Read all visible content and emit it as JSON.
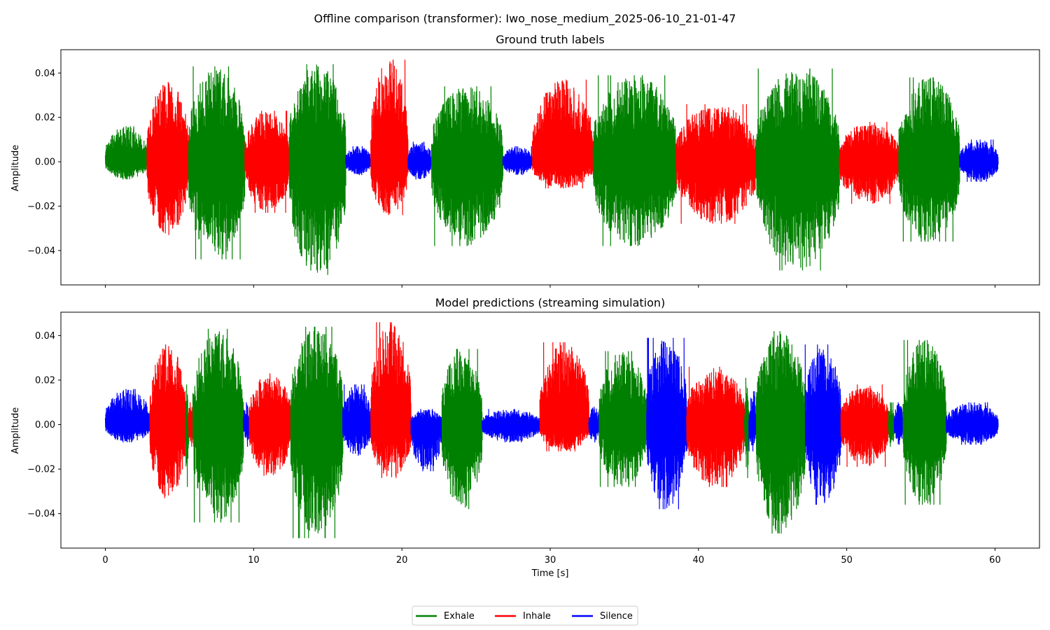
{
  "title": "Offline comparison (transformer): Iwo_nose_medium_2025-06-10_21-01-47",
  "colors": {
    "Exhale": "#008000",
    "Inhale": "#ff0000",
    "Silence": "#0000ff"
  },
  "chart_data": [
    {
      "type": "line",
      "title": "Ground truth labels",
      "xlabel": "",
      "ylabel": "Amplitude",
      "xlim": [
        -3,
        63
      ],
      "ylim": [
        -0.0555,
        0.0505
      ],
      "xticks": [
        0,
        10,
        20,
        30,
        40,
        50,
        60
      ],
      "show_xtick_labels": false,
      "yticks": [
        -0.04,
        -0.02,
        0.0,
        0.02,
        0.04
      ],
      "ytick_labels": [
        "−0.04",
        "−0.02",
        "0.00",
        "0.02",
        "0.04"
      ],
      "segments": [
        {
          "label": "Exhale",
          "start": 0.0,
          "end": 2.8,
          "peak_pos": 0.016,
          "peak_neg": -0.008
        },
        {
          "label": "Inhale",
          "start": 2.8,
          "end": 5.6,
          "peak_pos": 0.036,
          "peak_neg": -0.033
        },
        {
          "label": "Exhale",
          "start": 5.6,
          "end": 9.4,
          "peak_pos": 0.043,
          "peak_neg": -0.044
        },
        {
          "label": "Inhale",
          "start": 9.4,
          "end": 12.4,
          "peak_pos": 0.023,
          "peak_neg": -0.023
        },
        {
          "label": "Exhale",
          "start": 12.4,
          "end": 16.2,
          "peak_pos": 0.044,
          "peak_neg": -0.051
        },
        {
          "label": "Silence",
          "start": 16.2,
          "end": 17.9,
          "peak_pos": 0.007,
          "peak_neg": -0.006
        },
        {
          "label": "Inhale",
          "start": 17.9,
          "end": 20.4,
          "peak_pos": 0.046,
          "peak_neg": -0.024
        },
        {
          "label": "Silence",
          "start": 20.4,
          "end": 22.0,
          "peak_pos": 0.009,
          "peak_neg": -0.008
        },
        {
          "label": "Exhale",
          "start": 22.0,
          "end": 26.8,
          "peak_pos": 0.034,
          "peak_neg": -0.038
        },
        {
          "label": "Silence",
          "start": 26.8,
          "end": 28.8,
          "peak_pos": 0.007,
          "peak_neg": -0.006
        },
        {
          "label": "Inhale",
          "start": 28.8,
          "end": 32.9,
          "peak_pos": 0.037,
          "peak_neg": -0.012
        },
        {
          "label": "Exhale",
          "start": 32.9,
          "end": 38.5,
          "peak_pos": 0.039,
          "peak_neg": -0.038
        },
        {
          "label": "Inhale",
          "start": 38.5,
          "end": 43.9,
          "peak_pos": 0.026,
          "peak_neg": -0.028
        },
        {
          "label": "Exhale",
          "start": 43.9,
          "end": 49.5,
          "peak_pos": 0.042,
          "peak_neg": -0.049
        },
        {
          "label": "Inhale",
          "start": 49.5,
          "end": 53.5,
          "peak_pos": 0.018,
          "peak_neg": -0.019
        },
        {
          "label": "Exhale",
          "start": 53.5,
          "end": 57.6,
          "peak_pos": 0.038,
          "peak_neg": -0.036
        },
        {
          "label": "Silence",
          "start": 57.6,
          "end": 60.2,
          "peak_pos": 0.01,
          "peak_neg": -0.009
        }
      ]
    },
    {
      "type": "line",
      "title": "Model predictions (streaming simulation)",
      "xlabel": "Time [s]",
      "ylabel": "Amplitude",
      "xlim": [
        -3,
        63
      ],
      "ylim": [
        -0.0555,
        0.0505
      ],
      "xticks": [
        0,
        10,
        20,
        30,
        40,
        50,
        60
      ],
      "xtick_labels": [
        "0",
        "10",
        "20",
        "30",
        "40",
        "50",
        "60"
      ],
      "show_xtick_labels": true,
      "yticks": [
        -0.04,
        -0.02,
        0.0,
        0.02,
        0.04
      ],
      "ytick_labels": [
        "−0.04",
        "−0.02",
        "0.00",
        "0.02",
        "0.04"
      ],
      "segments": [
        {
          "label": "Silence",
          "start": 0.0,
          "end": 3.0,
          "peak_pos": 0.016,
          "peak_neg": -0.008
        },
        {
          "label": "Inhale",
          "start": 3.0,
          "end": 5.4,
          "peak_pos": 0.036,
          "peak_neg": -0.033
        },
        {
          "label": "Exhale",
          "start": 5.4,
          "end": 5.6,
          "peak_pos": 0.018,
          "peak_neg": -0.028
        },
        {
          "label": "Inhale",
          "start": 5.6,
          "end": 5.9,
          "peak_pos": 0.01,
          "peak_neg": -0.01
        },
        {
          "label": "Exhale",
          "start": 5.9,
          "end": 9.3,
          "peak_pos": 0.043,
          "peak_neg": -0.044
        },
        {
          "label": "Silence",
          "start": 9.3,
          "end": 9.7,
          "peak_pos": 0.01,
          "peak_neg": -0.01
        },
        {
          "label": "Inhale",
          "start": 9.7,
          "end": 12.5,
          "peak_pos": 0.023,
          "peak_neg": -0.023
        },
        {
          "label": "Exhale",
          "start": 12.5,
          "end": 16.0,
          "peak_pos": 0.044,
          "peak_neg": -0.051
        },
        {
          "label": "Silence",
          "start": 16.0,
          "end": 17.9,
          "peak_pos": 0.018,
          "peak_neg": -0.014
        },
        {
          "label": "Inhale",
          "start": 17.9,
          "end": 20.6,
          "peak_pos": 0.046,
          "peak_neg": -0.024
        },
        {
          "label": "Silence",
          "start": 20.6,
          "end": 22.7,
          "peak_pos": 0.007,
          "peak_neg": -0.021
        },
        {
          "label": "Exhale",
          "start": 22.7,
          "end": 25.4,
          "peak_pos": 0.034,
          "peak_neg": -0.038
        },
        {
          "label": "Silence",
          "start": 25.4,
          "end": 29.3,
          "peak_pos": 0.007,
          "peak_neg": -0.008
        },
        {
          "label": "Inhale",
          "start": 29.3,
          "end": 32.6,
          "peak_pos": 0.037,
          "peak_neg": -0.012
        },
        {
          "label": "Silence",
          "start": 32.6,
          "end": 33.3,
          "peak_pos": 0.008,
          "peak_neg": -0.008
        },
        {
          "label": "Exhale",
          "start": 33.3,
          "end": 36.5,
          "peak_pos": 0.033,
          "peak_neg": -0.028
        },
        {
          "label": "Silence",
          "start": 36.5,
          "end": 39.2,
          "peak_pos": 0.039,
          "peak_neg": -0.038
        },
        {
          "label": "Inhale",
          "start": 39.2,
          "end": 43.1,
          "peak_pos": 0.026,
          "peak_neg": -0.028
        },
        {
          "label": "Exhale",
          "start": 43.1,
          "end": 43.4,
          "peak_pos": 0.021,
          "peak_neg": -0.024
        },
        {
          "label": "Silence",
          "start": 43.4,
          "end": 43.9,
          "peak_pos": 0.015,
          "peak_neg": -0.012
        },
        {
          "label": "Exhale",
          "start": 43.9,
          "end": 47.2,
          "peak_pos": 0.042,
          "peak_neg": -0.049
        },
        {
          "label": "Silence",
          "start": 47.2,
          "end": 49.6,
          "peak_pos": 0.036,
          "peak_neg": -0.036
        },
        {
          "label": "Inhale",
          "start": 49.6,
          "end": 52.8,
          "peak_pos": 0.018,
          "peak_neg": -0.019
        },
        {
          "label": "Exhale",
          "start": 52.8,
          "end": 53.2,
          "peak_pos": 0.01,
          "peak_neg": -0.01
        },
        {
          "label": "Silence",
          "start": 53.2,
          "end": 53.8,
          "peak_pos": 0.01,
          "peak_neg": -0.009
        },
        {
          "label": "Exhale",
          "start": 53.8,
          "end": 56.7,
          "peak_pos": 0.038,
          "peak_neg": -0.036
        },
        {
          "label": "Silence",
          "start": 56.7,
          "end": 60.2,
          "peak_pos": 0.01,
          "peak_neg": -0.009
        }
      ]
    }
  ],
  "legend": {
    "position": "bottom-center",
    "items": [
      {
        "label": "Exhale",
        "color": "#008000"
      },
      {
        "label": "Inhale",
        "color": "#ff0000"
      },
      {
        "label": "Silence",
        "color": "#0000ff"
      }
    ]
  }
}
